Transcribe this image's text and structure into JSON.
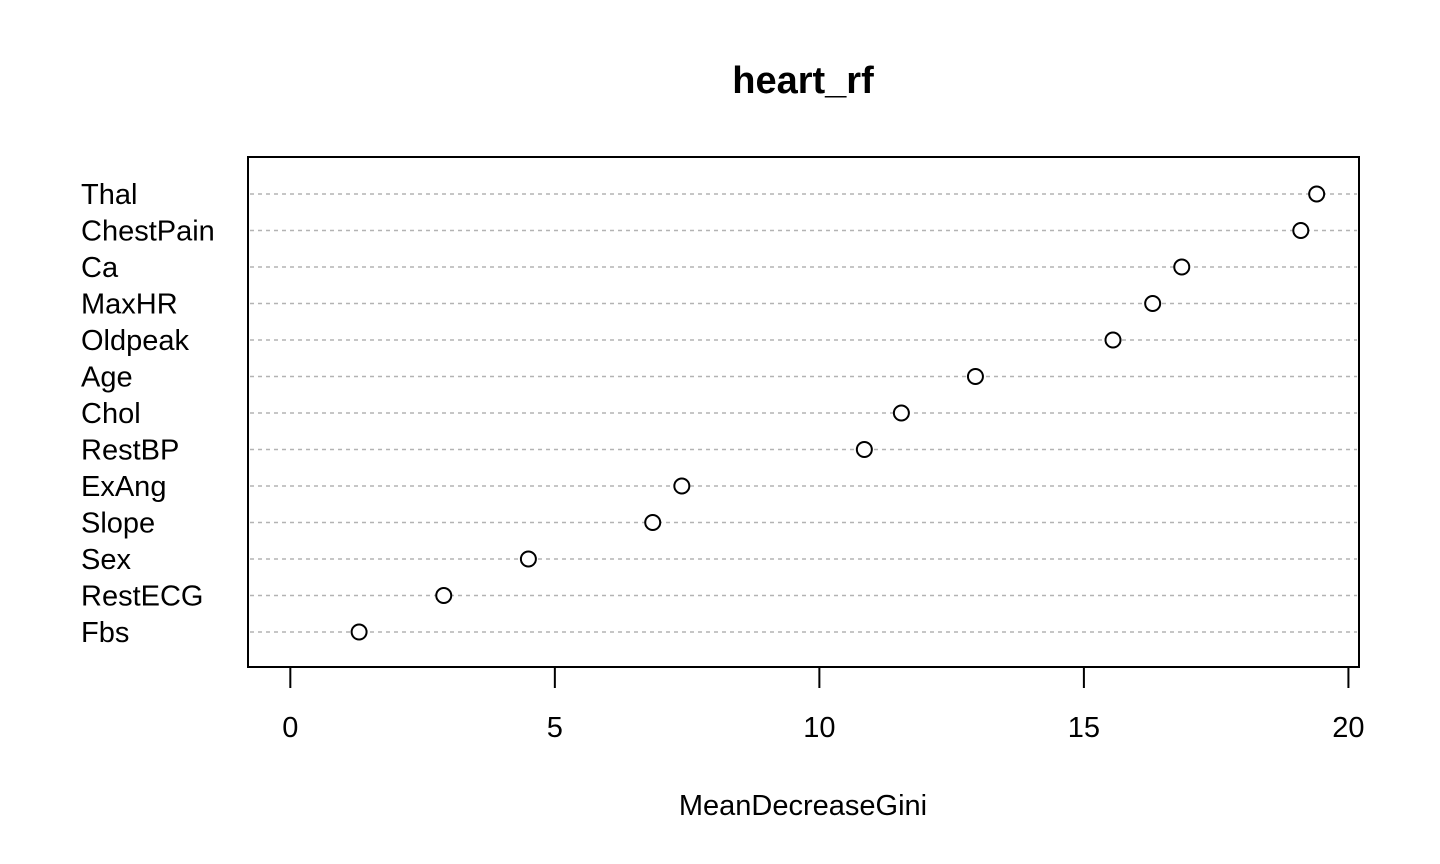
{
  "chart_data": {
    "type": "scatter",
    "title": "heart_rf",
    "xlabel": "MeanDecreaseGini",
    "ylabel": "",
    "xlim": [
      -0.8,
      20.2
    ],
    "xticks": [
      0,
      5,
      10,
      15,
      20
    ],
    "grid": "dotted horizontal lines per variable",
    "marker": "open circle",
    "categories": [
      "Thal",
      "ChestPain",
      "Ca",
      "MaxHR",
      "Oldpeak",
      "Age",
      "Chol",
      "RestBP",
      "ExAng",
      "Slope",
      "Sex",
      "RestECG",
      "Fbs"
    ],
    "values": [
      19.4,
      19.1,
      16.85,
      16.3,
      15.55,
      12.95,
      11.55,
      10.85,
      7.4,
      6.85,
      4.5,
      2.9,
      1.3
    ]
  }
}
